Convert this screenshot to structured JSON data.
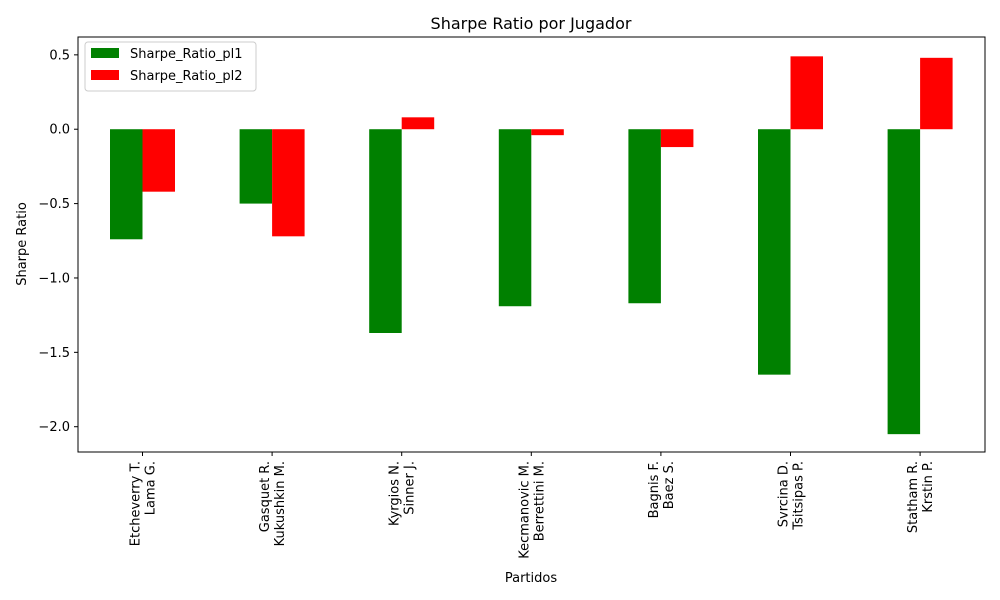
{
  "chart_data": {
    "type": "bar",
    "title": "Sharpe Ratio por Jugador",
    "xlabel": "Partidos",
    "ylabel": "Sharpe Ratio",
    "ylim": [
      -2.17,
      0.62
    ],
    "yticks": [
      0.5,
      0.0,
      -0.5,
      -1.0,
      -1.5,
      -2.0
    ],
    "ytick_labels": [
      "0.5",
      "0.0",
      "−0.5",
      "−1.0",
      "−1.5",
      "−2.0"
    ],
    "categories": [
      [
        "Etcheverry T.",
        "Lama G."
      ],
      [
        "Gasquet R.",
        "Kukushkin M."
      ],
      [
        "Kyrgios N.",
        "Sinner J."
      ],
      [
        "Kecmanovic M.",
        "Berrettini M."
      ],
      [
        "Bagnis F.",
        "Baez S."
      ],
      [
        "Svrcina D.",
        "Tsitsipas P."
      ],
      [
        "Statham R.",
        "Krstin P."
      ]
    ],
    "series": [
      {
        "name": "Sharpe_Ratio_pl1",
        "color": "#008000",
        "values": [
          -0.74,
          -0.5,
          -1.37,
          -1.19,
          -1.17,
          -1.65,
          -2.05
        ]
      },
      {
        "name": "Sharpe_Ratio_pl2",
        "color": "#ff0000",
        "values": [
          -0.42,
          -0.72,
          0.08,
          -0.04,
          -0.12,
          0.49,
          0.48
        ]
      }
    ],
    "legend": "top-left",
    "grid": false
  }
}
